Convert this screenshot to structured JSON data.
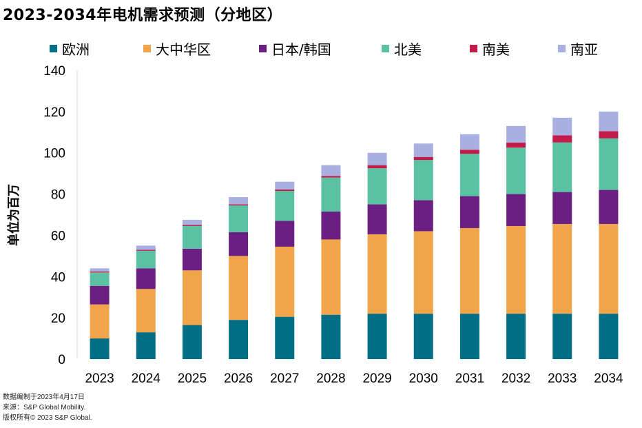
{
  "chart_data": {
    "type": "bar",
    "stacked": true,
    "title": "2023-2034年电机需求预测（分地区）",
    "ylabel": "单位为百万",
    "xlabel": "",
    "ylim": [
      0,
      140
    ],
    "yticks": [
      "0",
      "20",
      "40",
      "60",
      "80",
      "100",
      "120",
      "140"
    ],
    "categories": [
      "2023",
      "2024",
      "2025",
      "2026",
      "2027",
      "2028",
      "2029",
      "2030",
      "2031",
      "2032",
      "2033",
      "2034"
    ],
    "legend_position": "top",
    "series": [
      {
        "name": "欧洲",
        "color": "#006e85",
        "values": [
          10,
          13,
          16.5,
          19,
          20.5,
          21.5,
          22,
          22,
          22,
          22,
          22,
          22
        ]
      },
      {
        "name": "大中华区",
        "color": "#f0a54a",
        "values": [
          16.5,
          21,
          26.5,
          31,
          34,
          36.5,
          38.5,
          40,
          41.5,
          42.5,
          43.5,
          43.5
        ]
      },
      {
        "name": "日本/韩国",
        "color": "#6b1f82",
        "values": [
          9,
          10,
          10.5,
          11.5,
          12.5,
          13.5,
          14.5,
          15,
          15.5,
          15.5,
          15.5,
          16.5
        ]
      },
      {
        "name": "北美",
        "color": "#5bc1a3",
        "values": [
          6.5,
          8.5,
          11,
          13,
          14.5,
          16.5,
          17.5,
          19.5,
          20.5,
          22.5,
          24,
          25
        ]
      },
      {
        "name": "南美",
        "color": "#c21c4b",
        "values": [
          0.5,
          0.5,
          0.5,
          0.5,
          0.7,
          0.8,
          1.5,
          1.5,
          2,
          2.5,
          3.5,
          3.5
        ]
      },
      {
        "name": "南亚",
        "color": "#a9afe0",
        "values": [
          1.5,
          2,
          2.5,
          3.5,
          3.8,
          5.2,
          6,
          6.5,
          7.5,
          8,
          8.5,
          9.5
        ]
      }
    ]
  },
  "footer": {
    "line1": "数据编制于2023年4月17日",
    "line2": "来源：S&P Global Mobility.",
    "line3": "版权所有© 2023 S&P Global."
  }
}
